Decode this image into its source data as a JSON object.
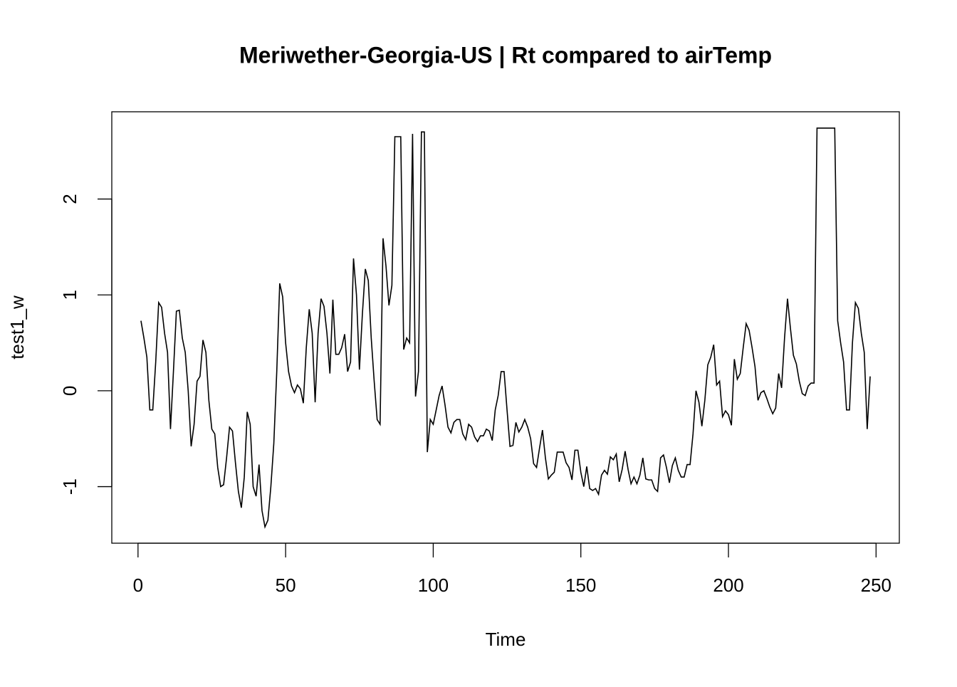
{
  "chart_data": {
    "type": "line",
    "title": "Meriwether-Georgia-US | Rt compared to airTemp",
    "x_label": "Time",
    "y_label": "test1_w",
    "color": "#000000",
    "x": [
      1,
      2,
      3,
      4,
      5,
      6,
      7,
      8,
      9,
      10,
      11,
      12,
      13,
      14,
      15,
      16,
      17,
      18,
      19,
      20,
      21,
      22,
      23,
      24,
      25,
      26,
      27,
      28,
      29,
      30,
      31,
      32,
      33,
      34,
      35,
      36,
      37,
      38,
      39,
      40,
      41,
      42,
      43,
      44,
      45,
      46,
      47,
      48,
      49,
      50,
      51,
      52,
      53,
      54,
      55,
      56,
      57,
      58,
      59,
      60,
      61,
      62,
      63,
      64,
      65,
      66,
      67,
      68,
      69,
      70,
      71,
      72,
      73,
      74,
      75,
      76,
      77,
      78,
      79,
      80,
      81,
      82,
      83,
      84,
      85,
      86,
      87,
      88,
      89,
      90,
      91,
      92,
      93,
      94,
      95,
      96,
      97,
      98,
      99,
      100,
      101,
      102,
      103,
      104,
      105,
      106,
      107,
      108,
      109,
      110,
      111,
      112,
      113,
      114,
      115,
      116,
      117,
      118,
      119,
      120,
      121,
      122,
      123,
      124,
      125,
      126,
      127,
      128,
      129,
      130,
      131,
      132,
      133,
      134,
      135,
      136,
      137,
      138,
      139,
      140,
      141,
      142,
      143,
      144,
      145,
      146,
      147,
      148,
      149,
      150,
      151,
      152,
      153,
      154,
      155,
      156,
      157,
      158,
      159,
      160,
      161,
      162,
      163,
      164,
      165,
      166,
      167,
      168,
      169,
      170,
      171,
      172,
      173,
      174,
      175,
      176,
      177,
      178,
      179,
      180,
      181,
      182,
      183,
      184,
      185,
      186,
      187,
      188,
      189,
      190,
      191,
      192,
      193,
      194,
      195,
      196,
      197,
      198,
      199,
      200,
      201,
      202,
      203,
      204,
      205,
      206,
      207,
      208,
      209,
      210,
      211,
      212,
      213,
      214,
      215,
      216,
      217,
      218,
      219,
      220,
      221,
      222,
      223,
      224,
      225,
      226,
      227,
      228,
      229,
      230,
      231,
      232,
      233,
      234,
      235,
      236,
      237,
      238,
      239,
      240,
      241,
      242,
      243,
      244,
      245,
      246,
      247,
      248
    ],
    "values": [
      0.73,
      0.55,
      0.35,
      -0.2,
      -0.2,
      0.3,
      0.92,
      0.87,
      0.6,
      0.4,
      -0.4,
      0.2,
      0.83,
      0.84,
      0.55,
      0.4,
      0.0,
      -0.58,
      -0.35,
      0.1,
      0.15,
      0.53,
      0.4,
      -0.1,
      -0.4,
      -0.45,
      -0.8,
      -1.0,
      -0.98,
      -0.7,
      -0.38,
      -0.42,
      -0.75,
      -1.05,
      -1.22,
      -0.9,
      -0.22,
      -0.35,
      -1.0,
      -1.1,
      -0.77,
      -1.25,
      -1.42,
      -1.35,
      -1.0,
      -0.55,
      0.2,
      1.12,
      0.98,
      0.5,
      0.2,
      0.05,
      -0.02,
      0.06,
      0.02,
      -0.13,
      0.45,
      0.85,
      0.6,
      -0.12,
      0.6,
      0.96,
      0.88,
      0.6,
      0.18,
      0.95,
      0.38,
      0.38,
      0.45,
      0.59,
      0.2,
      0.3,
      1.38,
      1.0,
      0.22,
      0.8,
      1.27,
      1.15,
      0.55,
      0.1,
      -0.3,
      -0.35,
      1.59,
      1.3,
      0.89,
      1.1,
      2.65,
      2.65,
      2.65,
      0.43,
      0.55,
      0.5,
      2.68,
      -0.06,
      0.2,
      2.7,
      2.7,
      -0.64,
      -0.3,
      -0.35,
      -0.2,
      -0.05,
      0.05,
      -0.15,
      -0.38,
      -0.44,
      -0.33,
      -0.3,
      -0.3,
      -0.45,
      -0.51,
      -0.35,
      -0.38,
      -0.48,
      -0.53,
      -0.47,
      -0.47,
      -0.4,
      -0.42,
      -0.52,
      -0.2,
      -0.05,
      0.2,
      0.2,
      -0.2,
      -0.58,
      -0.57,
      -0.33,
      -0.43,
      -0.38,
      -0.3,
      -0.38,
      -0.5,
      -0.76,
      -0.8,
      -0.6,
      -0.41,
      -0.7,
      -0.92,
      -0.88,
      -0.85,
      -0.64,
      -0.64,
      -0.64,
      -0.75,
      -0.8,
      -0.93,
      -0.62,
      -0.62,
      -0.85,
      -1.0,
      -0.79,
      -1.02,
      -1.04,
      -1.02,
      -1.08,
      -0.88,
      -0.83,
      -0.87,
      -0.69,
      -0.72,
      -0.66,
      -0.95,
      -0.82,
      -0.63,
      -0.82,
      -0.97,
      -0.9,
      -0.97,
      -0.88,
      -0.7,
      -0.92,
      -0.93,
      -0.93,
      -1.02,
      -1.05,
      -0.7,
      -0.67,
      -0.8,
      -0.96,
      -0.78,
      -0.7,
      -0.83,
      -0.9,
      -0.9,
      -0.77,
      -0.77,
      -0.45,
      0.0,
      -0.12,
      -0.37,
      -0.1,
      0.27,
      0.35,
      0.48,
      0.06,
      0.1,
      -0.27,
      -0.21,
      -0.25,
      -0.36,
      0.33,
      0.12,
      0.18,
      0.45,
      0.7,
      0.63,
      0.45,
      0.25,
      -0.1,
      -0.02,
      0.0,
      -0.08,
      -0.17,
      -0.24,
      -0.18,
      0.18,
      0.03,
      0.55,
      0.96,
      0.65,
      0.37,
      0.28,
      0.1,
      -0.03,
      -0.05,
      0.05,
      0.08,
      0.08,
      2.74,
      2.74,
      2.74,
      2.74,
      2.74,
      2.74,
      2.74,
      0.73,
      0.5,
      0.3,
      -0.2,
      -0.2,
      0.5,
      0.92,
      0.86,
      0.6,
      0.4,
      -0.4,
      0.15
    ],
    "xlim": [
      -8.88,
      257.88
    ],
    "xticks": [
      0,
      50,
      100,
      150,
      200,
      250
    ],
    "ylim": [
      -1.59,
      2.91
    ],
    "yticks": [
      -1,
      0,
      1,
      2
    ]
  }
}
